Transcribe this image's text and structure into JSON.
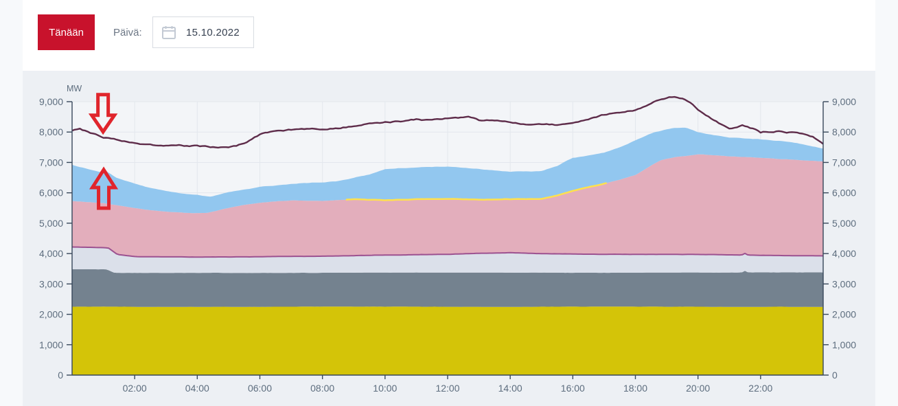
{
  "header": {
    "today_button": "Tänään",
    "date_label": "Päivä:",
    "date_value": "15.10.2022"
  },
  "colors": {
    "accent_red": "#c8122c",
    "page_bg": "#f7f9fb",
    "panel_bg": "#edf0f4",
    "plot_bg": "#f3f5f8",
    "grid": "#e3e7ed",
    "axis": "#37475a",
    "tick_text": "#5d6d7e",
    "annotation_red": "#e0252c",
    "date_border": "#d8dce2",
    "calendar_icon": "#c3cad4"
  },
  "chart_data": {
    "type": "area",
    "title": "",
    "ylabel": "MW",
    "xlabel": "",
    "ylim": [
      0,
      9000
    ],
    "xlim_hours": [
      0,
      24
    ],
    "grid": true,
    "legend": "none",
    "y_ticks": {
      "values": [
        0,
        1000,
        2000,
        3000,
        4000,
        5000,
        6000,
        7000,
        8000,
        9000
      ],
      "labels": [
        "0",
        "1,000",
        "2,000",
        "3,000",
        "4,000",
        "5,000",
        "6,000",
        "7,000",
        "8,000",
        "9,000"
      ],
      "sides": [
        "left",
        "right"
      ]
    },
    "x_ticks": {
      "hours": [
        2,
        4,
        6,
        8,
        10,
        12,
        14,
        16,
        18,
        20,
        22
      ],
      "labels": [
        "02:00",
        "04:00",
        "06:00",
        "08:00",
        "10:00",
        "12:00",
        "14:00",
        "16:00",
        "18:00",
        "20:00",
        "22:00"
      ]
    },
    "series": [
      {
        "id": "base-yellow-band",
        "type": "area",
        "color": "#d4c408",
        "points": [
          [
            0,
            2250
          ],
          [
            24,
            2250
          ]
        ]
      },
      {
        "id": "slate-band",
        "type": "area",
        "color": "#74828f",
        "points": [
          [
            0,
            3480
          ],
          [
            1.1,
            3475
          ],
          [
            1.35,
            3360
          ],
          [
            3,
            3360
          ],
          [
            6,
            3365
          ],
          [
            9,
            3375
          ],
          [
            12,
            3380
          ],
          [
            15,
            3375
          ],
          [
            18,
            3370
          ],
          [
            21.4,
            3375
          ],
          [
            21.5,
            3430
          ],
          [
            21.6,
            3375
          ],
          [
            24,
            3375
          ]
        ]
      },
      {
        "id": "light-gray-band",
        "type": "area",
        "color": "#dbe0ea",
        "points": [
          [
            0,
            4220
          ],
          [
            0.6,
            4210
          ],
          [
            1.15,
            4195
          ],
          [
            1.45,
            3975
          ],
          [
            2,
            3905
          ],
          [
            3,
            3890
          ],
          [
            4,
            3880
          ],
          [
            6,
            3890
          ],
          [
            8,
            3920
          ],
          [
            10,
            3950
          ],
          [
            12,
            3970
          ],
          [
            13.5,
            4020
          ],
          [
            14,
            4030
          ],
          [
            15,
            4000
          ],
          [
            16,
            3990
          ],
          [
            18,
            3970
          ],
          [
            20,
            3970
          ],
          [
            21.4,
            3950
          ],
          [
            21.5,
            4000
          ],
          [
            21.6,
            3945
          ],
          [
            22,
            3940
          ],
          [
            23,
            3930
          ],
          [
            24,
            3920
          ]
        ]
      },
      {
        "id": "pink-band",
        "type": "area",
        "color": "#e3aebc",
        "points": [
          [
            0,
            5720
          ],
          [
            1,
            5650
          ],
          [
            1.5,
            5570
          ],
          [
            2,
            5500
          ],
          [
            2.5,
            5440
          ],
          [
            3,
            5390
          ],
          [
            3.8,
            5330
          ],
          [
            4.3,
            5340
          ],
          [
            5,
            5490
          ],
          [
            5.5,
            5600
          ],
          [
            6,
            5680
          ],
          [
            7,
            5750
          ],
          [
            8,
            5720
          ],
          [
            9,
            5780
          ],
          [
            10,
            5750
          ],
          [
            11,
            5780
          ],
          [
            12,
            5790
          ],
          [
            13,
            5775
          ],
          [
            14,
            5790
          ],
          [
            15,
            5805
          ],
          [
            15.5,
            5900
          ],
          [
            16,
            6060
          ],
          [
            17,
            6290
          ],
          [
            17.5,
            6420
          ],
          [
            18,
            6580
          ],
          [
            18.8,
            7080
          ],
          [
            19.3,
            7180
          ],
          [
            20,
            7260
          ],
          [
            20.7,
            7220
          ],
          [
            21,
            7190
          ],
          [
            22,
            7150
          ],
          [
            23,
            7100
          ],
          [
            24,
            7040
          ]
        ]
      },
      {
        "id": "blue-band",
        "type": "area",
        "color": "#92c7ef",
        "points": [
          [
            0,
            6920
          ],
          [
            0.5,
            6790
          ],
          [
            0.95,
            6690
          ],
          [
            1.05,
            6760
          ],
          [
            1.4,
            6520
          ],
          [
            2,
            6310
          ],
          [
            2.5,
            6160
          ],
          [
            3,
            6060
          ],
          [
            3.5,
            5990
          ],
          [
            4,
            5950
          ],
          [
            4.4,
            5880
          ],
          [
            5,
            6040
          ],
          [
            6,
            6190
          ],
          [
            7,
            6280
          ],
          [
            8,
            6340
          ],
          [
            8.5,
            6380
          ],
          [
            9,
            6480
          ],
          [
            9.5,
            6600
          ],
          [
            10,
            6760
          ],
          [
            10.5,
            6820
          ],
          [
            11,
            6850
          ],
          [
            12,
            6880
          ],
          [
            12.5,
            6840
          ],
          [
            13,
            6800
          ],
          [
            13.5,
            6740
          ],
          [
            14,
            6700
          ],
          [
            15,
            6710
          ],
          [
            15.5,
            6880
          ],
          [
            16,
            7150
          ],
          [
            16.5,
            7230
          ],
          [
            17,
            7310
          ],
          [
            17.5,
            7480
          ],
          [
            18,
            7710
          ],
          [
            18.6,
            7990
          ],
          [
            19.2,
            8120
          ],
          [
            19.6,
            8150
          ],
          [
            20,
            8010
          ],
          [
            20.5,
            7900
          ],
          [
            21,
            7830
          ],
          [
            22,
            7760
          ],
          [
            23,
            7670
          ],
          [
            23.5,
            7580
          ],
          [
            24,
            7470
          ]
        ]
      },
      {
        "id": "magenta-boundary-line",
        "type": "line-on-boundary",
        "boundary": "light-gray-band",
        "color": "#9c5190",
        "width": 2
      },
      {
        "id": "solar-yellow-line",
        "type": "line-on-boundary",
        "boundary": "pink-band",
        "color": "#ffe14d",
        "width": 2.5,
        "t_range": [
          8.75,
          17.1
        ]
      },
      {
        "id": "consumption-line",
        "type": "line",
        "color": "#5e2c4a",
        "width": 2.4,
        "points": [
          [
            0,
            8060
          ],
          [
            0.25,
            8100
          ],
          [
            0.6,
            7960
          ],
          [
            1,
            7840
          ],
          [
            1.5,
            7750
          ],
          [
            2,
            7670
          ],
          [
            2.5,
            7620
          ],
          [
            3,
            7590
          ],
          [
            3.5,
            7570
          ],
          [
            4,
            7560
          ],
          [
            4.6,
            7500
          ],
          [
            5.2,
            7550
          ],
          [
            5.6,
            7680
          ],
          [
            6,
            7900
          ],
          [
            6.5,
            7990
          ],
          [
            7,
            8040
          ],
          [
            8,
            8090
          ],
          [
            8.5,
            8160
          ],
          [
            9,
            8240
          ],
          [
            9.5,
            8300
          ],
          [
            10,
            8340
          ],
          [
            10.5,
            8380
          ],
          [
            11,
            8450
          ],
          [
            11.5,
            8390
          ],
          [
            12,
            8460
          ],
          [
            12.7,
            8470
          ],
          [
            13,
            8360
          ],
          [
            14,
            8350
          ],
          [
            14.5,
            8290
          ],
          [
            15,
            8300
          ],
          [
            15.5,
            8280
          ],
          [
            16,
            8350
          ],
          [
            16.5,
            8420
          ],
          [
            17,
            8550
          ],
          [
            17.5,
            8620
          ],
          [
            18,
            8700
          ],
          [
            18.4,
            8870
          ],
          [
            18.8,
            9050
          ],
          [
            19.1,
            9120
          ],
          [
            19.5,
            9080
          ],
          [
            19.8,
            8890
          ],
          [
            20,
            8680
          ],
          [
            20.4,
            8420
          ],
          [
            21,
            8080
          ],
          [
            21.4,
            8190
          ],
          [
            21.8,
            8060
          ],
          [
            22,
            7950
          ],
          [
            22.5,
            8010
          ],
          [
            23,
            7990
          ],
          [
            23.4,
            7880
          ],
          [
            23.7,
            7790
          ],
          [
            24,
            7580
          ]
        ]
      }
    ],
    "annotations": [
      {
        "id": "arrow-down",
        "dir": "down",
        "hour": 0.99,
        "mw": 8010
      },
      {
        "id": "arrow-up",
        "dir": "up",
        "hour": 1.01,
        "mw": 6760
      }
    ]
  }
}
